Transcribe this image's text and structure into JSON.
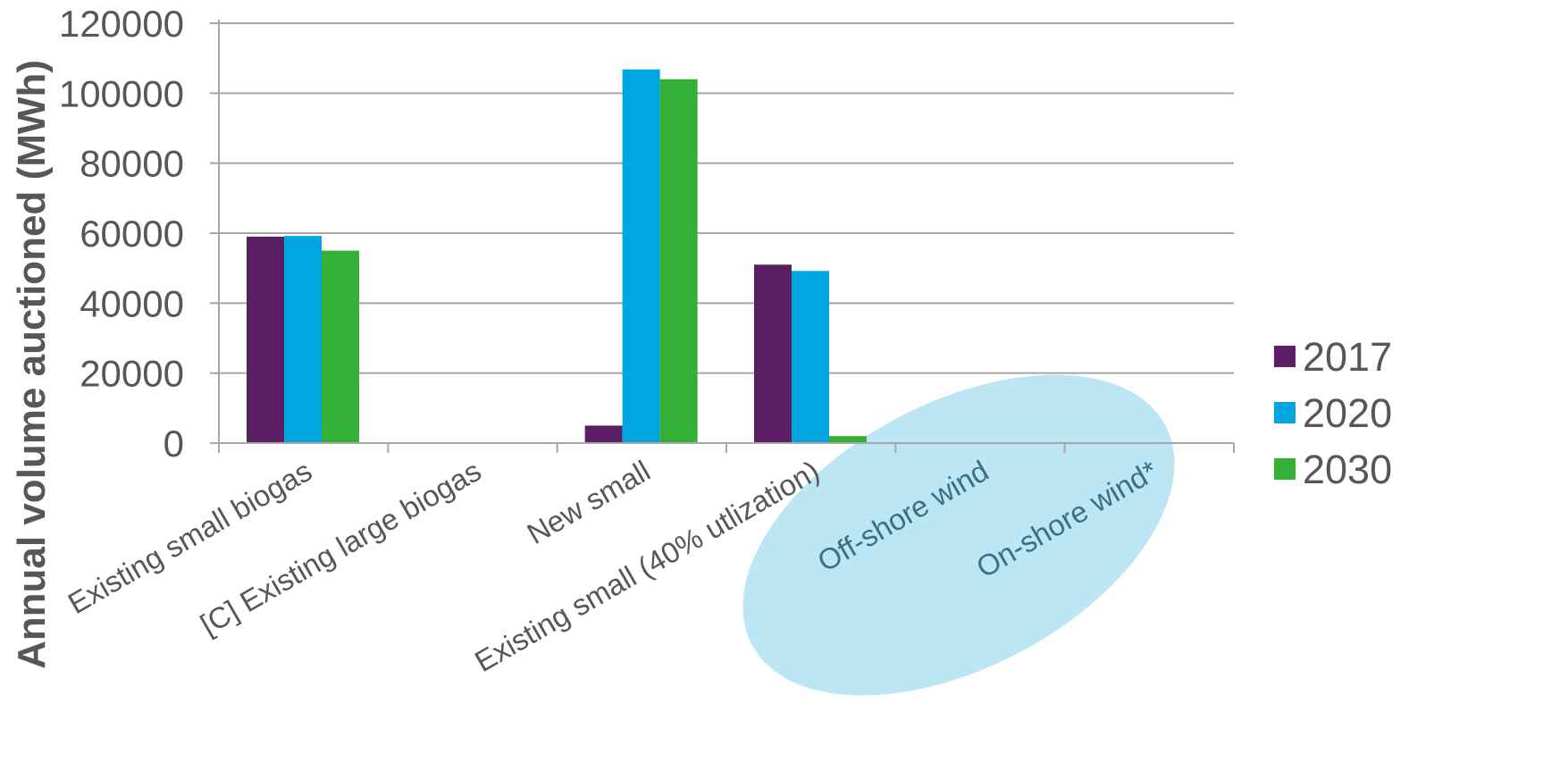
{
  "chart_data": {
    "type": "bar",
    "categories": [
      "Existing small biogas",
      "[C] Existing large biogas",
      "New small",
      "Existing small (40% utlization)",
      "Off-shore wind",
      "On-shore wind*"
    ],
    "series": [
      {
        "name": "2017",
        "color": "#5a1e63",
        "values": [
          59000,
          0,
          5000,
          51000,
          0,
          0
        ]
      },
      {
        "name": "2020",
        "color": "#00a6df",
        "values": [
          59200,
          0,
          106800,
          49200,
          0,
          0
        ]
      },
      {
        "name": "2030",
        "color": "#35b036",
        "values": [
          55000,
          0,
          104000,
          2000,
          0,
          0
        ]
      }
    ],
    "yticks": [
      "0",
      "20000",
      "40000",
      "60000",
      "80000",
      "100000",
      "120000"
    ],
    "ylabel": "Annual volume auctioned (MWh)",
    "ylim": [
      0,
      120000
    ],
    "grid": true,
    "legend_position": "right",
    "highlight": {
      "shape": "ellipse",
      "color": "#bde6f5",
      "covers": [
        "Off-shore wind",
        "On-shore wind*"
      ]
    }
  }
}
